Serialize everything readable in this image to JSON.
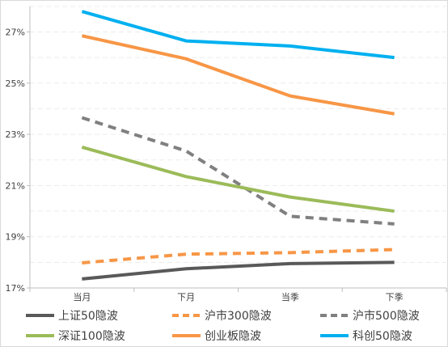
{
  "chart_data": {
    "type": "line",
    "categories": [
      "当月",
      "下月",
      "当季",
      "下季"
    ],
    "yticks": [
      "17%",
      "19%",
      "21%",
      "23%",
      "25%",
      "27%"
    ],
    "ylim": [
      17,
      28.3
    ],
    "series": [
      {
        "name": "上证50隐波",
        "values": [
          17.35,
          17.75,
          17.95,
          18.0
        ],
        "color": "#595959",
        "dash": "solid"
      },
      {
        "name": "沪市300隐波",
        "values": [
          17.98,
          18.32,
          18.38,
          18.5
        ],
        "color": "#f79646",
        "dash": "dashed"
      },
      {
        "name": "沪市500隐波",
        "values": [
          23.65,
          22.35,
          19.8,
          19.5
        ],
        "color": "#808080",
        "dash": "dashed"
      },
      {
        "name": "深证100隐波",
        "values": [
          22.5,
          21.35,
          20.55,
          20.0
        ],
        "color": "#9bbb59",
        "dash": "solid"
      },
      {
        "name": "创业板隐波",
        "values": [
          26.85,
          25.95,
          24.5,
          23.8
        ],
        "color": "#f79646",
        "dash": "solid"
      },
      {
        "name": "科创50隐波",
        "values": [
          27.8,
          26.65,
          26.45,
          26.0
        ],
        "color": "#00b0f0",
        "dash": "solid"
      }
    ],
    "grid": true,
    "legend_position": "bottom"
  }
}
